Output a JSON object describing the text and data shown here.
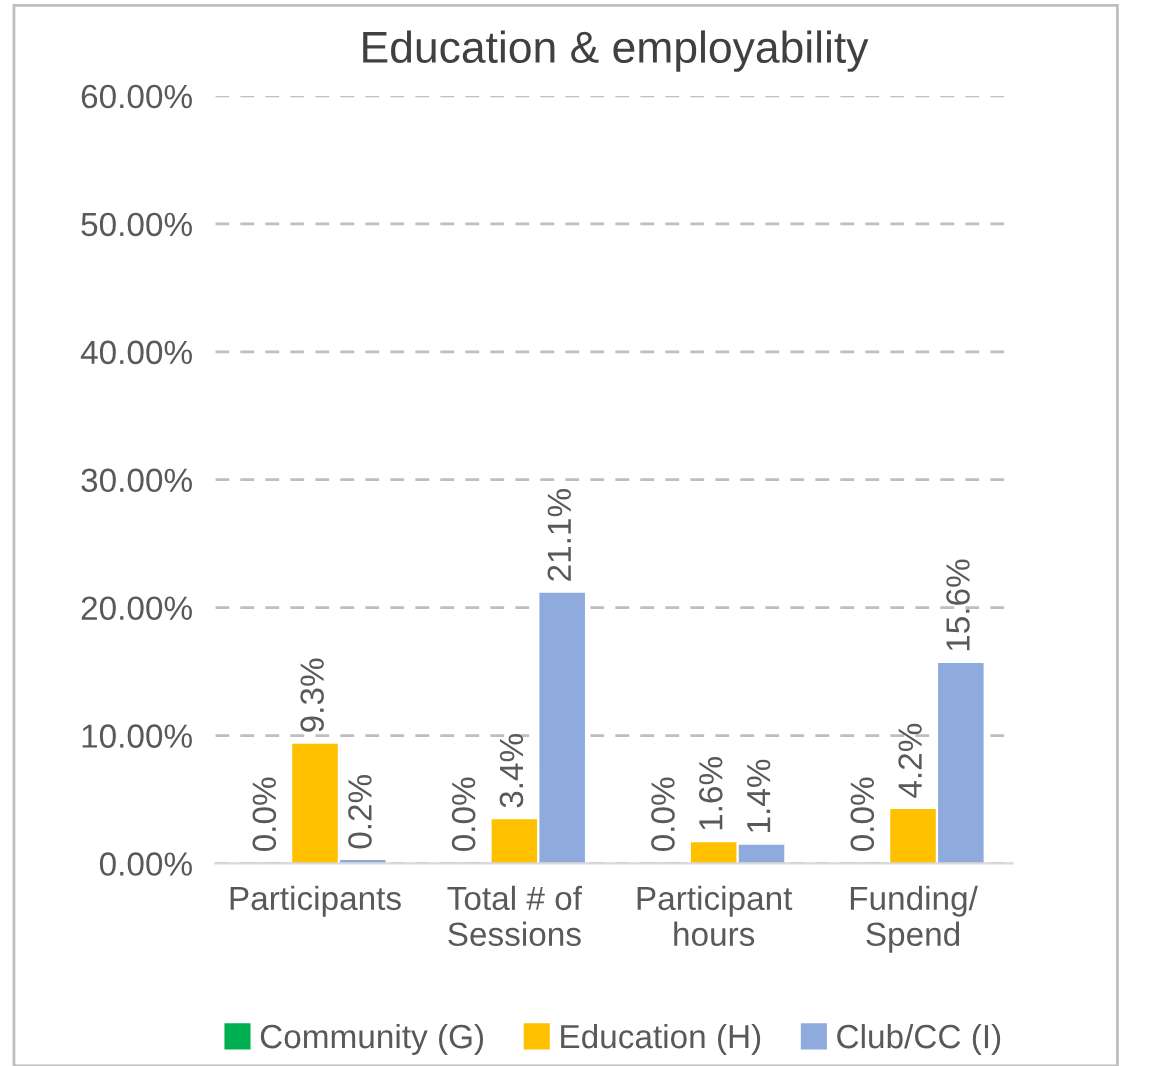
{
  "chart_data": {
    "type": "bar",
    "title": "Education & employability",
    "categories": [
      "Participants",
      "Total # of\nSessions",
      "Participant\nhours",
      "Funding/\nSpend"
    ],
    "series": [
      {
        "name": "Community (G)",
        "color": "#00b050",
        "values": [
          0.0,
          0.0,
          0.0,
          0.0
        ],
        "value_labels": [
          "0.0%",
          "0.0%",
          "0.0%",
          "0.0%"
        ]
      },
      {
        "name": "Education (H)",
        "color": "#ffc000",
        "values": [
          9.3,
          3.4,
          1.6,
          4.2
        ],
        "value_labels": [
          "9.3%",
          "3.4%",
          "1.6%",
          "4.2%"
        ]
      },
      {
        "name": "Club/CC (I)",
        "color": "#8faadc",
        "values": [
          0.2,
          21.1,
          1.4,
          15.6
        ],
        "value_labels": [
          "0.2%",
          "21.1%",
          "1.4%",
          "15.6%"
        ]
      }
    ],
    "ylim": [
      0,
      60
    ],
    "yticks": [
      {
        "value": 0,
        "label": "0.00%"
      },
      {
        "value": 10,
        "label": "10.00%"
      },
      {
        "value": 20,
        "label": "20.00%"
      },
      {
        "value": 30,
        "label": "30.00%"
      },
      {
        "value": 40,
        "label": "40.00%"
      },
      {
        "value": 50,
        "label": "50.00%"
      },
      {
        "value": 60,
        "label": "60.00%"
      }
    ],
    "grid": "y",
    "legend": "bottom"
  }
}
